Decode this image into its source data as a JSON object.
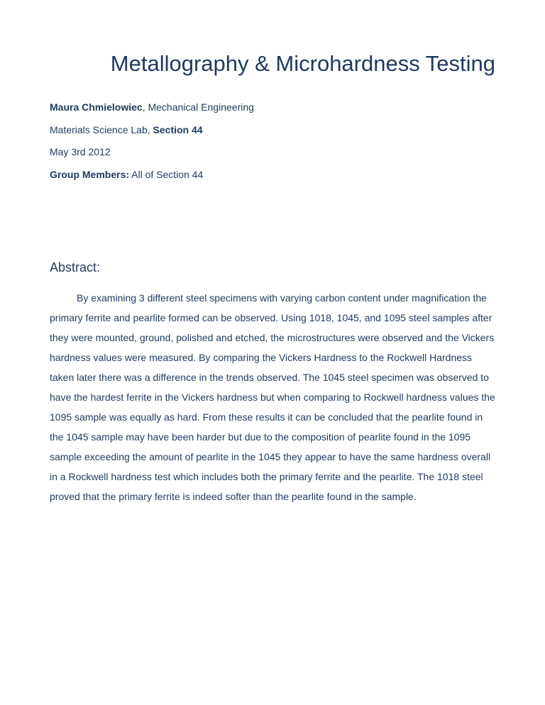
{
  "title": "Metallography & Microhardness Testing",
  "author_name": "Maura Chmielowiec",
  "author_dept": ", Mechanical Engineering",
  "course_prefix": "Materials Science Lab, ",
  "course_section": "Section 44",
  "date": "May 3rd 2012",
  "members_label": "Group Members:",
  "members_value": " All of Section 44",
  "abstract_label": "Abstract:",
  "abstract_body": "By examining 3 different steel specimens with varying carbon content under magnification the primary ferrite and pearlite formed can be observed. Using 1018, 1045, and 1095 steel samples after they were mounted, ground, polished and etched, the microstructures were observed and the Vickers hardness values were measured. By comparing the Vickers Hardness to the Rockwell Hardness taken later there was a difference in the trends observed. The 1045 steel specimen was observed to have the hardest ferrite in the Vickers hardness but when comparing to Rockwell hardness values the 1095 sample was equally as hard. From these results it can be concluded that the pearlite found in the 1045 sample may have been harder but due to the composition of pearlite found in the 1095 sample exceeding the amount of pearlite in the 1045  they appear to have the same hardness overall in a Rockwell hardness test which includes both the primary ferrite and the pearlite. The 1018 steel proved that the primary ferrite is indeed softer than the pearlite found in the sample.",
  "colors": {
    "text": "#1f3a5f",
    "background": "#ffffff"
  },
  "typography": {
    "title_fontsize": 31,
    "body_fontsize": 14,
    "abstract_label_fontsize": 18,
    "font_family": "Verdana"
  }
}
